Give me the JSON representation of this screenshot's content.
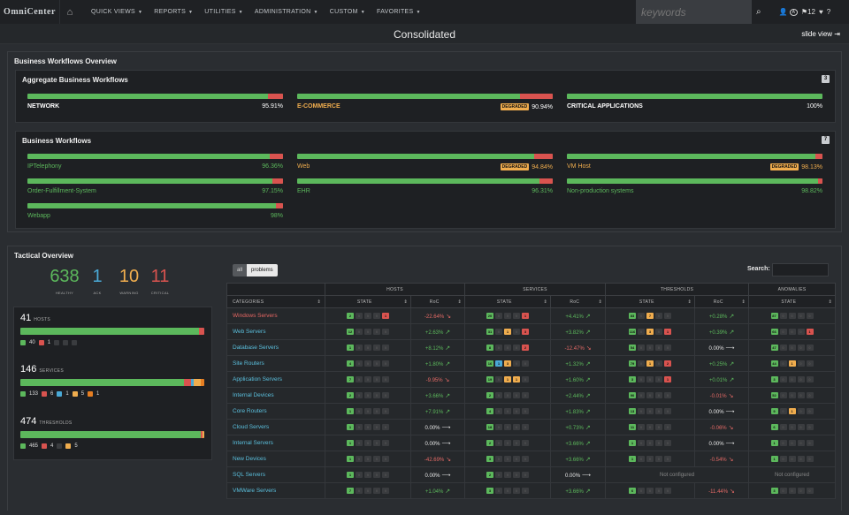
{
  "topnav": {
    "logo": "OmniCenter",
    "menu": [
      "QUICK VIEWS",
      "REPORTS",
      "UTILITIES",
      "ADMINISTRATION",
      "CUSTOM",
      "FAVORITES"
    ],
    "search_placeholder": "keywords",
    "badge_a": "A",
    "flag_count": "12"
  },
  "header": {
    "title": "Consolidated",
    "slide_view": "slide view"
  },
  "bwo": {
    "title": "Business Workflows Overview",
    "aggregate": {
      "title": "Aggregate Business Workflows",
      "count": "3",
      "items": [
        {
          "name": "NETWORK",
          "value": "95.91%",
          "status": "ok",
          "pct": 95.91
        },
        {
          "name": "E-COMMERCE",
          "value": "90.94%",
          "status": "degraded",
          "badge": "DEGRADED",
          "pct": 90.94
        },
        {
          "name": "CRITICAL APPLICATIONS",
          "value": "100%",
          "status": "ok",
          "pct": 100
        }
      ]
    },
    "workflows": {
      "title": "Business Workflows",
      "count": "7",
      "items": [
        {
          "name": "IPTelephony",
          "value": "96.36%",
          "status": "ok",
          "pct": 96.36
        },
        {
          "name": "Web",
          "value": "94.84%",
          "status": "degraded",
          "badge": "DEGRADED",
          "pct": 94.84
        },
        {
          "name": "VM Host",
          "value": "98.13%",
          "status": "degraded",
          "badge": "DEGRADED",
          "pct": 98.13
        },
        {
          "name": "Order-Fulfillment-System",
          "value": "97.15%",
          "status": "ok",
          "pct": 97.15
        },
        {
          "name": "EHR",
          "value": "96.31%",
          "status": "ok",
          "pct": 96.31
        },
        {
          "name": "Non-production systems",
          "value": "98.82%",
          "status": "ok",
          "pct": 98.82
        },
        {
          "name": "Webapp",
          "value": "98%",
          "status": "ok",
          "pct": 98
        }
      ]
    }
  },
  "tactical": {
    "title": "Tactical Overview",
    "kpis": [
      {
        "value": "638",
        "label": "HEALTHY",
        "color": "#5cb85c"
      },
      {
        "value": "1",
        "label": "ACK",
        "color": "#4aa9d6"
      },
      {
        "value": "10",
        "label": "WARNING",
        "color": "#f0ad4e"
      },
      {
        "value": "11",
        "label": "CRITICAL",
        "color": "#d9534f"
      }
    ],
    "summaries": [
      {
        "count": "41",
        "label": "HOSTS",
        "legend": [
          "40",
          "1"
        ]
      },
      {
        "count": "146",
        "label": "SERVICES",
        "legend": [
          "133",
          "6",
          "1",
          "5",
          "1"
        ]
      },
      {
        "count": "474",
        "label": "THRESHOLDS",
        "legend": [
          "465",
          "4",
          "5"
        ]
      }
    ],
    "tabs": [
      "all",
      "problems"
    ],
    "search_label": "Search:",
    "groups": [
      "HOSTS",
      "SERVICES",
      "THRESHOLDS",
      "ANOMALIES"
    ],
    "cols": {
      "categories": "CATEGORIES",
      "state": "STATE",
      "roc": "RoC"
    },
    "rows": [
      {
        "name": "Windows Servers",
        "crit": true,
        "h": [
          "2",
          "",
          "",
          "",
          "1"
        ],
        "hr": "-22.64%",
        "hd": "dn",
        "s": [
          "20",
          "",
          "",
          "",
          "1"
        ],
        "sr": "+4.41%",
        "sd": "up",
        "t": [
          "83",
          "",
          "7",
          "",
          ""
        ],
        "tr": "+0.28%",
        "td": "up",
        "a": [
          "87",
          "",
          "",
          "",
          ""
        ]
      },
      {
        "name": "Web Servers",
        "h": [
          "12",
          "",
          "",
          "",
          ""
        ],
        "hr": "+2.63%",
        "hd": "up",
        "s": [
          "31",
          "",
          "1",
          "",
          "3"
        ],
        "sr": "+3.82%",
        "sd": "up",
        "t": [
          "116",
          "",
          "3",
          "",
          "1"
        ],
        "tr": "+0.39%",
        "td": "up",
        "a": [
          "66",
          "",
          "",
          "",
          "1"
        ]
      },
      {
        "name": "Database Servers",
        "h": [
          "1",
          "",
          "",
          "",
          ""
        ],
        "hr": "+8.12%",
        "hd": "up",
        "s": [
          "8",
          "",
          "",
          "",
          "2"
        ],
        "sr": "-12.47%",
        "sd": "dn",
        "t": [
          "54",
          "",
          "",
          "",
          ""
        ],
        "tr": "0.00%",
        "td": "fl",
        "a": [
          "47",
          "",
          "",
          "",
          ""
        ]
      },
      {
        "name": "Site Routers",
        "h": [
          "4",
          "",
          "",
          "",
          ""
        ],
        "hr": "+1.80%",
        "hd": "up",
        "s": [
          "16",
          "1",
          "3",
          "",
          ""
        ],
        "sr": "+1.32%",
        "sd": "up",
        "t": [
          "79",
          "",
          "1",
          "",
          "2"
        ],
        "tr": "+0.25%",
        "td": "up",
        "a": [
          "44",
          "",
          "1",
          "",
          ""
        ]
      },
      {
        "name": "Application Servers",
        "h": [
          "7",
          "",
          "",
          "",
          ""
        ],
        "hr": "-9.95%",
        "hd": "dn",
        "s": [
          "19",
          "",
          "1",
          "1",
          ""
        ],
        "sr": "+1.60%",
        "sd": "up",
        "t": [
          "3",
          "",
          "",
          "",
          "1"
        ],
        "tr": "+0.01%",
        "td": "up",
        "a": [
          "3",
          "",
          "",
          "",
          ""
        ]
      },
      {
        "name": "Internal Devices",
        "h": [
          "2",
          "",
          "",
          "",
          ""
        ],
        "hr": "+3.66%",
        "hd": "up",
        "s": [
          "2",
          "",
          "",
          "",
          ""
        ],
        "sr": "+2.44%",
        "sd": "up",
        "t": [
          "90",
          "",
          "",
          "",
          ""
        ],
        "tr": "-0.01%",
        "td": "dn",
        "a": [
          "52",
          "",
          "",
          "",
          ""
        ]
      },
      {
        "name": "Core Routers",
        "h": [
          "1",
          "",
          "",
          "",
          ""
        ],
        "hr": "+7.91%",
        "hd": "up",
        "s": [
          "4",
          "",
          "",
          "",
          ""
        ],
        "sr": "+1.83%",
        "sd": "up",
        "t": [
          "13",
          "",
          "",
          "",
          ""
        ],
        "tr": "0.00%",
        "td": "fl",
        "a": [
          "9",
          "",
          "1",
          "",
          ""
        ]
      },
      {
        "name": "Cloud Servers",
        "h": [
          "1",
          "",
          "",
          "",
          ""
        ],
        "hr": "0.00%",
        "hd": "fl",
        "s": [
          "18",
          "",
          "",
          "",
          ""
        ],
        "sr": "+0.73%",
        "sd": "up",
        "t": [
          "11",
          "",
          "",
          "",
          ""
        ],
        "tr": "-0.06%",
        "td": "dn",
        "a": [
          "6",
          "",
          "",
          "",
          ""
        ]
      },
      {
        "name": "Internal Servers",
        "h": [
          "1",
          "",
          "",
          "",
          ""
        ],
        "hr": "0.00%",
        "hd": "fl",
        "s": [
          "2",
          "",
          "",
          "",
          ""
        ],
        "sr": "+3.66%",
        "sd": "up",
        "t": [
          "1",
          "",
          "",
          "",
          ""
        ],
        "tr": "0.00%",
        "td": "fl",
        "a": [
          "1",
          "",
          "",
          "",
          ""
        ]
      },
      {
        "name": "New Devices",
        "h": [
          "1",
          "",
          "",
          "",
          ""
        ],
        "hr": "-42.69%",
        "hd": "dn",
        "s": [
          "3",
          "",
          "",
          "",
          ""
        ],
        "sr": "+3.66%",
        "sd": "up",
        "t": [
          "1",
          "",
          "",
          "",
          ""
        ],
        "tr": "-0.54%",
        "td": "dn",
        "a": [
          "1",
          "",
          "",
          "",
          ""
        ]
      },
      {
        "name": "SQL Servers",
        "h": [
          "1",
          "",
          "",
          "",
          ""
        ],
        "hr": "0.00%",
        "hd": "fl",
        "s": [
          "2",
          "",
          "",
          "",
          ""
        ],
        "sr": "0.00%",
        "sd": "fl",
        "t": null,
        "tr": "Not configured",
        "a": null,
        "anote": "Not configured"
      },
      {
        "name": "VMWare Servers",
        "h": [
          "7",
          "",
          "",
          "",
          ""
        ],
        "hr": "+1.04%",
        "hd": "up",
        "s": [
          "3",
          "",
          "",
          "",
          ""
        ],
        "sr": "+3.66%",
        "sd": "up",
        "t": [
          "6",
          "",
          "",
          "",
          ""
        ],
        "tr": "-11.44%",
        "td": "dn",
        "a": [
          "3",
          "",
          "",
          "",
          ""
        ]
      }
    ]
  },
  "colors": {
    "ok": "#5cb85c",
    "warning": "#f0ad4e",
    "critical": "#d9534f",
    "ack": "#4aa9d6"
  }
}
